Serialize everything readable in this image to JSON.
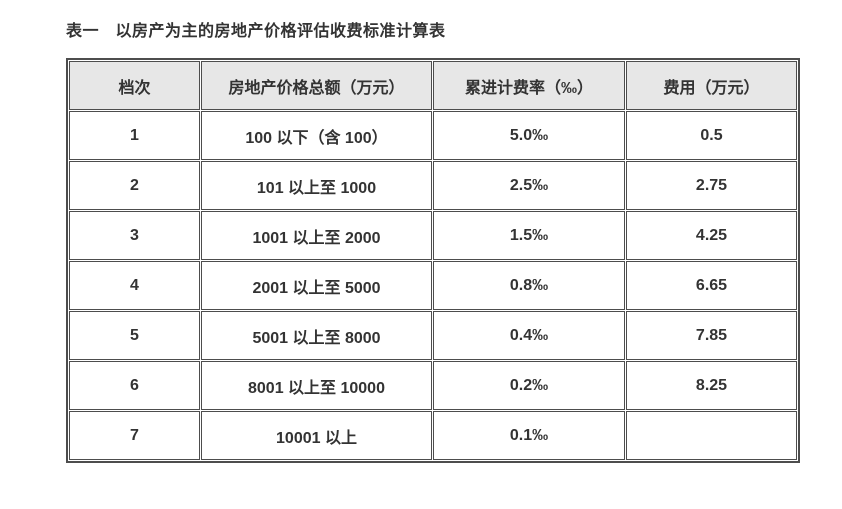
{
  "title": "表一　以房产为主的房地产价格评估收费标准计算表",
  "table": {
    "columns": [
      "档次",
      "房地产价格总额（万元）",
      "累进计费率（‰）",
      "费用（万元）"
    ],
    "rows": [
      [
        "1",
        "100 以下（含 100）",
        "5.0‰",
        "0.5"
      ],
      [
        "2",
        "101 以上至 1000",
        "2.5‰",
        "2.75"
      ],
      [
        "3",
        "1001 以上至 2000",
        "1.5‰",
        "4.25"
      ],
      [
        "4",
        "2001 以上至 5000",
        "0.8‰",
        "6.65"
      ],
      [
        "5",
        "5001 以上至 8000",
        "0.4‰",
        "7.85"
      ],
      [
        "6",
        "8001 以上至 10000",
        "0.2‰",
        "8.25"
      ],
      [
        "7",
        "10001 以上",
        "0.1‰",
        ""
      ]
    ]
  },
  "colors": {
    "border": "#4d4d4d",
    "header_bg": "#e7e7e7",
    "text": "#333333",
    "page_bg": "#ffffff"
  }
}
